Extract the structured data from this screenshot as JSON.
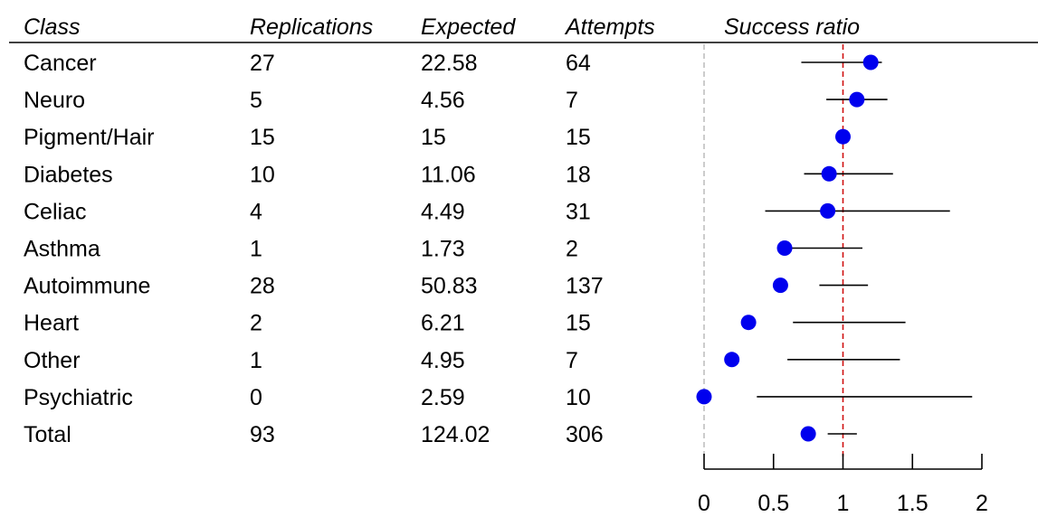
{
  "chart_data": {
    "type": "forest",
    "columns": [
      "Class",
      "Replications",
      "Expected",
      "Attempts"
    ],
    "metric_label": "Success ratio",
    "rows": [
      {
        "class": "Cancer",
        "replications": "27",
        "expected": "22.58",
        "attempts": "64",
        "ratio": 1.2,
        "ci": [
          0.7,
          1.28
        ]
      },
      {
        "class": "Neuro",
        "replications": "5",
        "expected": "4.56",
        "attempts": "7",
        "ratio": 1.1,
        "ci": [
          0.88,
          1.32
        ]
      },
      {
        "class": "Pigment/Hair",
        "replications": "15",
        "expected": "15",
        "attempts": "15",
        "ratio": 1.0,
        "ci": [
          0.98,
          1.02
        ]
      },
      {
        "class": "Diabetes",
        "replications": "10",
        "expected": "11.06",
        "attempts": "18",
        "ratio": 0.9,
        "ci": [
          0.72,
          1.36
        ]
      },
      {
        "class": "Celiac",
        "replications": "4",
        "expected": "4.49",
        "attempts": "31",
        "ratio": 0.89,
        "ci": [
          0.44,
          1.77
        ]
      },
      {
        "class": "Asthma",
        "replications": "1",
        "expected": "1.73",
        "attempts": "2",
        "ratio": 0.58,
        "ci": [
          0.58,
          1.14
        ]
      },
      {
        "class": "Autoimmune",
        "replications": "28",
        "expected": "50.83",
        "attempts": "137",
        "ratio": 0.55,
        "ci": [
          0.83,
          1.18
        ]
      },
      {
        "class": "Heart",
        "replications": "2",
        "expected": "6.21",
        "attempts": "15",
        "ratio": 0.32,
        "ci": [
          0.64,
          1.45
        ]
      },
      {
        "class": "Other",
        "replications": "1",
        "expected": "4.95",
        "attempts": "7",
        "ratio": 0.2,
        "ci": [
          0.6,
          1.41
        ]
      },
      {
        "class": "Psychiatric",
        "replications": "0",
        "expected": "2.59",
        "attempts": "10",
        "ratio": 0.0,
        "ci": [
          0.38,
          1.93
        ]
      },
      {
        "class": "Total",
        "replications": "93",
        "expected": "124.02",
        "attempts": "306",
        "ratio": 0.75,
        "ci": [
          0.89,
          1.1
        ]
      }
    ],
    "x_axis": {
      "ticks": [
        0,
        0.5,
        1,
        1.5,
        2
      ],
      "tick_labels": [
        "0",
        "0.5",
        "1",
        "1.5",
        "2"
      ],
      "range": [
        0,
        2
      ]
    },
    "reference_lines": [
      {
        "value": 0,
        "style": "dashed",
        "color": "#c0c0c0"
      },
      {
        "value": 1,
        "style": "dashed",
        "color": "#d01010"
      }
    ],
    "colors": {
      "point": "#0000ee",
      "ci_line": "#000000",
      "text": "#000000"
    }
  }
}
